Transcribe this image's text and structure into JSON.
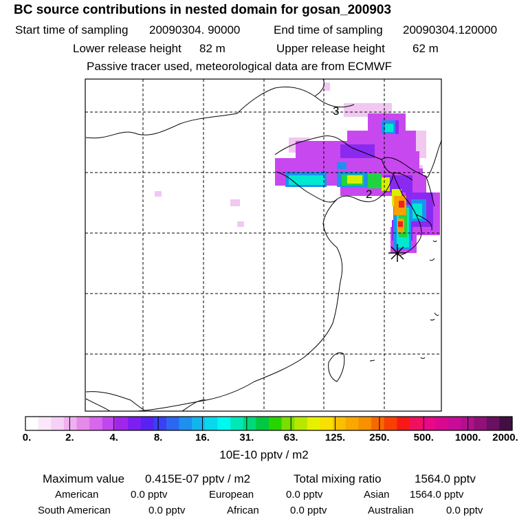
{
  "header": {
    "title": "BC  source contributions in nested domain for gosan_200903",
    "start_label": "Start time of sampling",
    "start_value": "20090304. 90000",
    "end_label": "End time of sampling",
    "end_value": "20090304.120000",
    "lower_label": "Lower release height",
    "lower_value": "82 m",
    "upper_label": "Upper release height",
    "upper_value": "62 m",
    "note": "Passive tracer used, meteorological data are from ECMWF"
  },
  "map": {
    "markers": [
      {
        "label": "3"
      },
      {
        "label": "2"
      }
    ],
    "receptor": "gosan-station-asterisk"
  },
  "colorbar": {
    "colors": [
      "#ffffff",
      "#fbe8fb",
      "#f6d0f6",
      "#f0b0f0",
      "#e58ae8",
      "#d767eb",
      "#c047ee",
      "#a225ec",
      "#7d1ff0",
      "#5a22f2",
      "#3b40f4",
      "#2a68f2",
      "#1d90f0",
      "#12b4ee",
      "#09d8ec",
      "#00f8f0",
      "#00e8b5",
      "#00d87a",
      "#00c840",
      "#28d400",
      "#78e000",
      "#b8e800",
      "#e8f000",
      "#f8e000",
      "#f8c000",
      "#f8a800",
      "#f89000",
      "#f86800",
      "#f84000",
      "#f81818",
      "#f01060",
      "#e80888",
      "#d80890",
      "#c80c98",
      "#b0108c",
      "#901078",
      "#6a1060",
      "#401040"
    ],
    "ticks": [
      "0.",
      "2.",
      "4.",
      "8.",
      "16.",
      "31.",
      "63.",
      "125.",
      "250.",
      "500.",
      "1000.",
      "2000."
    ],
    "unit": "10E-10 pptv / m2"
  },
  "stats": {
    "max_label": "Maximum value",
    "max_value": "0.415E-07 pptv / m2",
    "total_label": "Total mixing ratio",
    "total_value": "1564.0 pptv",
    "regions": [
      {
        "name": "American",
        "value": "0.0 pptv"
      },
      {
        "name": "European",
        "value": "0.0 pptv"
      },
      {
        "name": "Asian",
        "value": "1564.0 pptv"
      },
      {
        "name": "South American",
        "value": "0.0 pptv"
      },
      {
        "name": "African",
        "value": "0.0 pptv"
      },
      {
        "name": "Australian",
        "value": "0.0 pptv"
      }
    ]
  }
}
